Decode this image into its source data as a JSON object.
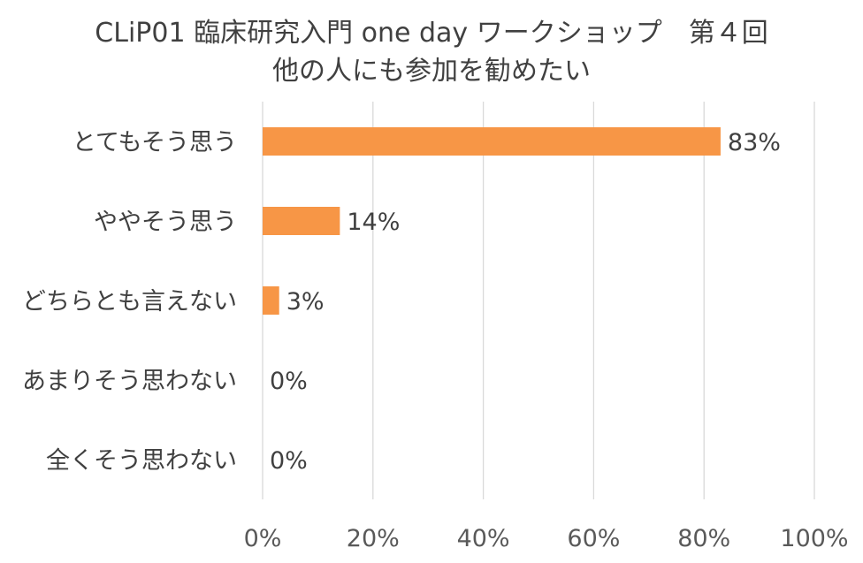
{
  "chart_data": {
    "type": "bar",
    "orientation": "horizontal",
    "title_lines": [
      "CLiP01 臨床研究入門 one day ワークショップ　第４回",
      "他の人にも参加を勧めたい"
    ],
    "categories": [
      "とてもそう思う",
      "ややそう思う",
      "どちらとも言えない",
      "あまりそう思わない",
      "全くそう思わない"
    ],
    "values": [
      83,
      14,
      3,
      0,
      0
    ],
    "data_labels": [
      "83%",
      "14%",
      "3%",
      "0%",
      "0%"
    ],
    "x_ticks": [
      "0%",
      "20%",
      "40%",
      "60%",
      "80%",
      "100%"
    ],
    "xlim": [
      0,
      100
    ],
    "grid": true,
    "legend": false,
    "bar_color": "#F79646",
    "gridline_color": "#D9D9D9"
  }
}
